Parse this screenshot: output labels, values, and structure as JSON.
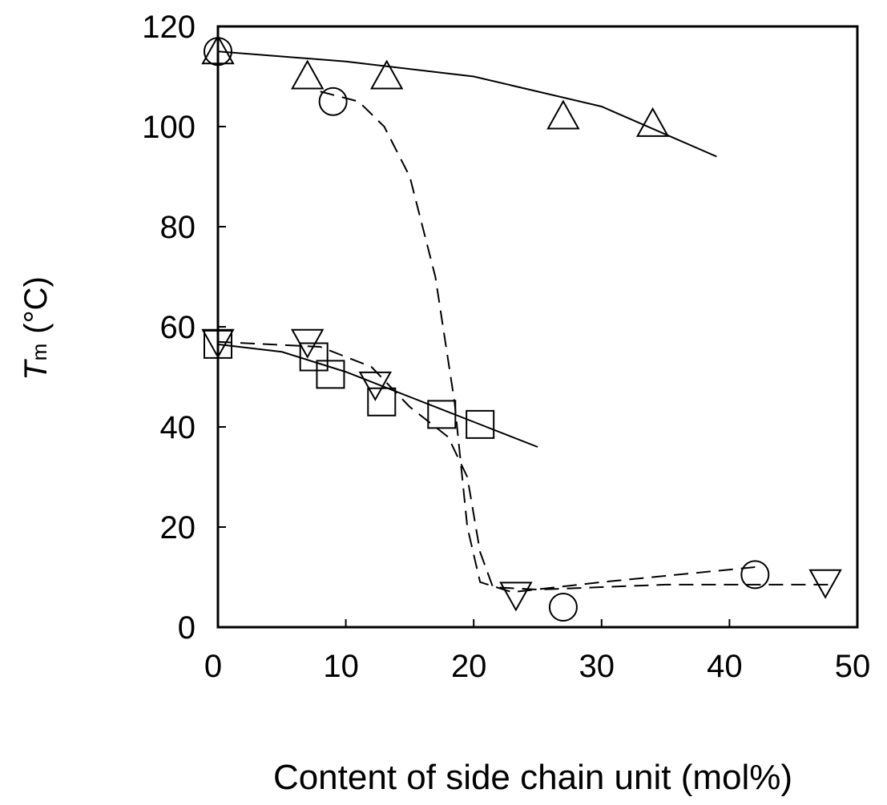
{
  "chart_data": {
    "type": "scatter",
    "xlabel": "Content of side chain unit (mol%)",
    "ylabel": {
      "main": "T",
      "sub": "m",
      "rest": "(°C)"
    },
    "xlim": [
      0,
      50
    ],
    "ylim": [
      0,
      120
    ],
    "xticks": [
      0,
      10,
      20,
      30,
      40,
      50
    ],
    "yticks": [
      0,
      20,
      40,
      60,
      80,
      100,
      120
    ],
    "series": [
      {
        "marker": "triangle-up",
        "color": "#000000",
        "x": [
          0,
          7,
          13.2,
          27,
          34
        ],
        "values": [
          115,
          110,
          110,
          102,
          100.5
        ]
      },
      {
        "marker": "circle",
        "color": "#000000",
        "x": [
          0,
          9,
          27,
          42
        ],
        "values": [
          115,
          105,
          4,
          10.5
        ]
      },
      {
        "marker": "square",
        "color": "#000000",
        "x": [
          0,
          7.5,
          8.8,
          12.8,
          17.5,
          20.5
        ],
        "values": [
          56.5,
          54,
          50.5,
          45,
          42.5,
          40.5
        ]
      },
      {
        "marker": "triangle-down",
        "color": "#000000",
        "x": [
          0,
          7,
          12.3,
          23.3,
          47.5
        ],
        "values": [
          57,
          57,
          48.5,
          6.5,
          9
        ]
      }
    ],
    "fits": [
      {
        "dashed": false,
        "x": [
          0,
          10,
          20,
          30,
          39
        ],
        "values": [
          115,
          113,
          110,
          104,
          94
        ]
      },
      {
        "dashed": true,
        "x": [
          8,
          11,
          13,
          15,
          17,
          18.5,
          19.5,
          20.5,
          23,
          30,
          42
        ],
        "values": [
          107,
          105,
          100,
          90,
          70,
          45,
          20,
          9,
          7,
          9,
          12
        ]
      },
      {
        "dashed": false,
        "x": [
          0,
          5,
          10,
          15,
          20,
          25
        ],
        "values": [
          56.5,
          55,
          51,
          46,
          41,
          36
        ]
      },
      {
        "dashed": true,
        "x": [
          0,
          8,
          12,
          15,
          18,
          19.5,
          20.5,
          21.5,
          25,
          35,
          48
        ],
        "values": [
          57,
          56,
          52,
          44,
          38,
          30,
          15,
          8,
          7.5,
          8.5,
          8.5
        ]
      }
    ]
  }
}
